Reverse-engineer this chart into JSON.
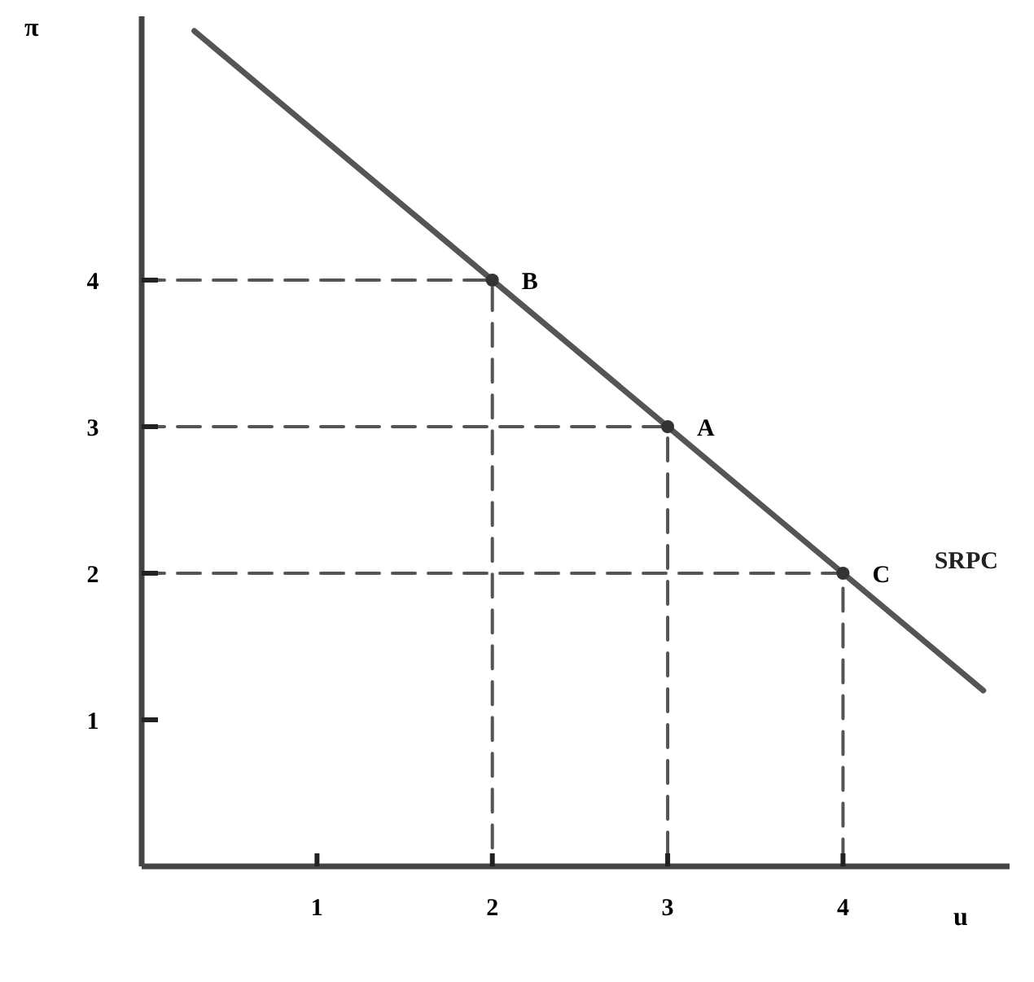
{
  "chart_data": {
    "type": "line",
    "xlabel": "u",
    "ylabel": "π",
    "xlim": [
      0,
      4.95
    ],
    "ylim": [
      0,
      5.8
    ],
    "xticks": [
      1,
      2,
      3,
      4
    ],
    "yticks": [
      1,
      2,
      3,
      4
    ],
    "grid": false,
    "legend": false,
    "series": [
      {
        "type": "line",
        "color": "#555555",
        "x": [
          0,
          3,
          3
        ],
        "values": [
          3,
          3,
          0
        ],
        "marker": "none",
        "line_style": "dashed"
      },
      {
        "type": "line",
        "color": "#555555",
        "x": [
          0,
          2,
          2
        ],
        "values": [
          4,
          4,
          0
        ],
        "marker": "none",
        "line_style": "dashed"
      },
      {
        "type": "line",
        "color": "#555555",
        "x": [
          0,
          4,
          4
        ],
        "values": [
          2,
          2,
          0
        ],
        "marker": "none",
        "line_style": "dashed"
      },
      {
        "name": "SRPC",
        "color": "#555555",
        "x": [
          0.3,
          4.8
        ],
        "values": [
          5.7,
          1.2
        ],
        "marker": "none",
        "line_style": "solid"
      },
      {
        "type": "scatter",
        "color": "#333333",
        "x": [
          3,
          2,
          4
        ],
        "values": [
          3,
          4,
          2
        ],
        "marker": "circle"
      }
    ],
    "annotations": [
      {
        "text": "A",
        "x": 3,
        "y": 3
      },
      {
        "text": "B",
        "x": 2,
        "y": 4
      },
      {
        "text": "C",
        "x": 4,
        "y": 2
      }
    ]
  }
}
